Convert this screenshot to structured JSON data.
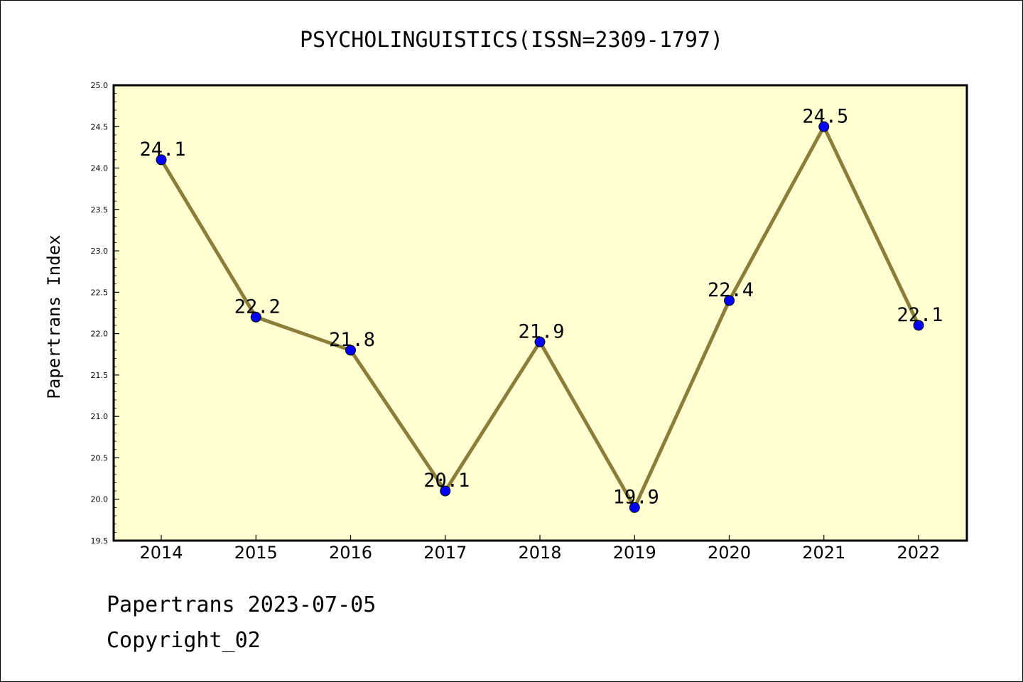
{
  "chart_data": {
    "type": "line",
    "title": "PSYCHOLINGUISTICS(ISSN=2309-1797)",
    "xlabel": "",
    "ylabel": "Papertrans Index",
    "x": [
      "2014",
      "2015",
      "2016",
      "2017",
      "2018",
      "2019",
      "2020",
      "2021",
      "2022"
    ],
    "series": [
      {
        "values": [
          24.1,
          22.2,
          21.8,
          20.1,
          21.9,
          19.9,
          22.4,
          24.5,
          22.1
        ]
      }
    ],
    "data_labels": [
      "24.1",
      "22.2",
      "21.8",
      "20.1",
      "21.9",
      "19.9",
      "22.4",
      "24.5",
      "22.1"
    ],
    "ylim": [
      19.5,
      25.0
    ],
    "yticks": [
      "19.5",
      "20.0",
      "20.5",
      "21.0",
      "21.5",
      "22.0",
      "22.5",
      "23.0",
      "23.5",
      "24.0",
      "24.5",
      "25.0"
    ],
    "grid": false,
    "colors": {
      "plot_background": "#ffffd2",
      "line": "#8b7d3a",
      "marker": "#0000ff"
    }
  },
  "footer": {
    "line1": "Papertrans 2023-07-05",
    "line2": "Copyright_02"
  }
}
